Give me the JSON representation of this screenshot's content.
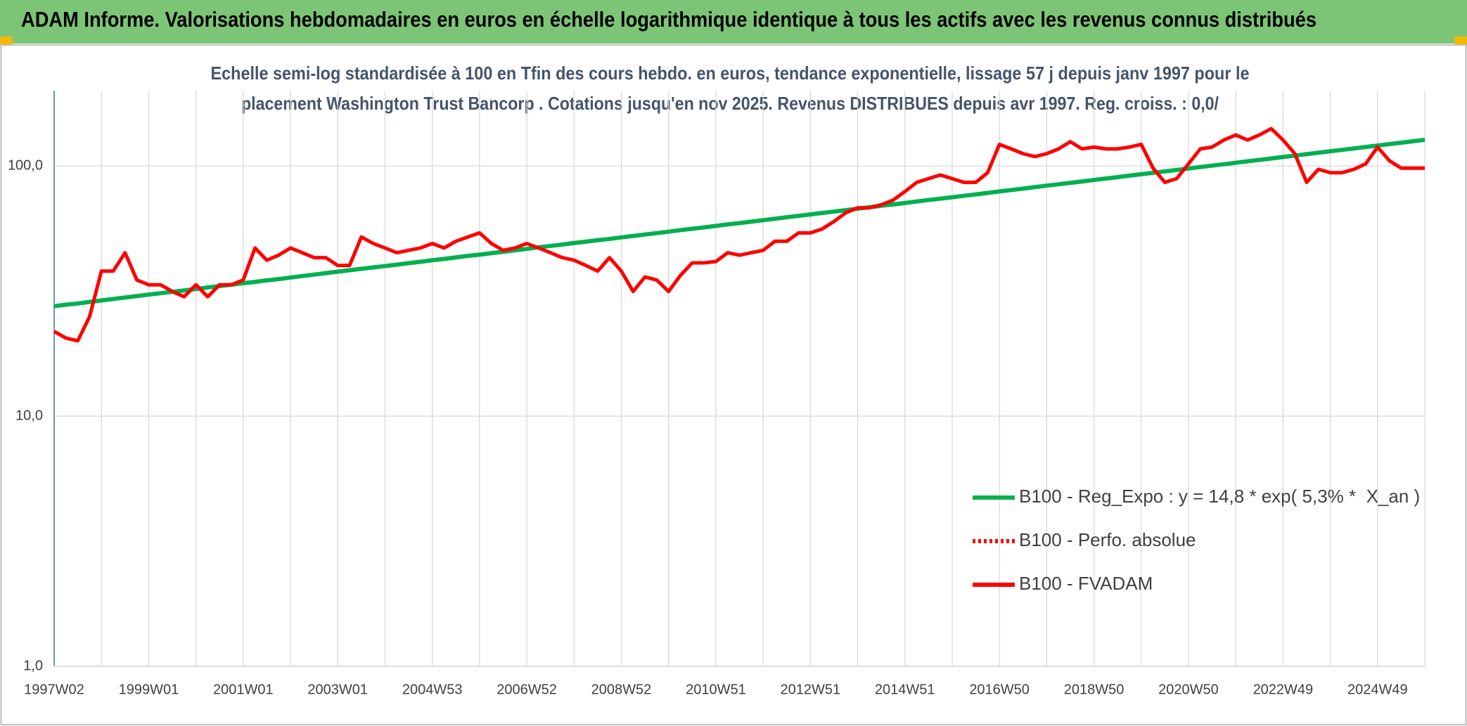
{
  "chart_data": {
    "type": "line",
    "title": "ADAM Informe. Valorisations hebdomadaires en euros en échelle logarithmique identique à tous les actifs avec les revenus connus distribués",
    "subtitle": [
      "Echelle semi-log standardisée à 100 en Tfin des cours hebdo. en euros, tendance exponentielle, lissage 57 j depuis janv 1997 pour le",
      "placement Washington Trust Bancorp . Cotations jusqu'en nov 2025. Revenus DISTRIBUES depuis avr 1997. Reg. croiss. : 0,0/"
    ],
    "log_scale": true,
    "grid": true,
    "legend": "lower right",
    "ylim": [
      1,
      200
    ],
    "yticks": [
      {
        "value": 1,
        "label": "1,0"
      },
      {
        "value": 10,
        "label": "10,0"
      },
      {
        "value": 100,
        "label": "100,0"
      }
    ],
    "categories": [
      "1997W02",
      null,
      null,
      null,
      null,
      null,
      null,
      null,
      "1999W01",
      null,
      null,
      null,
      null,
      null,
      null,
      null,
      "2001W01",
      null,
      null,
      null,
      null,
      null,
      null,
      null,
      "2003W01",
      null,
      null,
      null,
      null,
      null,
      null,
      null,
      "2004W53",
      null,
      null,
      null,
      null,
      null,
      null,
      null,
      "2006W52",
      null,
      null,
      null,
      null,
      null,
      null,
      null,
      "2008W52",
      null,
      null,
      null,
      null,
      null,
      null,
      null,
      "2010W51",
      null,
      null,
      null,
      null,
      null,
      null,
      null,
      "2012W51",
      null,
      null,
      null,
      null,
      null,
      null,
      null,
      "2014W51",
      null,
      null,
      null,
      null,
      null,
      null,
      null,
      "2016W50",
      null,
      null,
      null,
      null,
      null,
      null,
      null,
      "2018W50",
      null,
      null,
      null,
      null,
      null,
      null,
      null,
      "2020W50",
      null,
      null,
      null,
      null,
      null,
      null,
      null,
      "2022W49",
      null,
      null,
      null,
      null,
      null,
      null,
      null,
      "2024W49",
      null,
      null,
      null,
      null
    ],
    "series": [
      {
        "name": "B100 - Reg_Expo : y = 14,8 * exp( 5,3% *  X_an )",
        "color": "#00b050",
        "style": "solid",
        "values": [
          27.5,
          27.9,
          28.2,
          28.6,
          29.0,
          29.4,
          29.8,
          30.2,
          30.6,
          31.0,
          31.4,
          31.8,
          32.2,
          32.7,
          33.1,
          33.5,
          34.0,
          34.4,
          34.9,
          35.3,
          35.8,
          36.3,
          36.8,
          37.3,
          37.8,
          38.3,
          38.8,
          39.3,
          39.8,
          40.3,
          40.9,
          41.4,
          42.0,
          42.5,
          43.1,
          43.7,
          44.2,
          44.8,
          45.4,
          46.0,
          46.6,
          47.3,
          47.9,
          48.5,
          49.2,
          49.8,
          50.5,
          51.1,
          51.8,
          52.5,
          53.2,
          53.9,
          54.6,
          55.4,
          56.1,
          56.8,
          57.6,
          58.4,
          59.1,
          59.9,
          60.7,
          61.5,
          62.4,
          63.2,
          64.0,
          64.9,
          65.7,
          66.6,
          67.5,
          68.4,
          69.3,
          70.2,
          71.1,
          72.1,
          73.1,
          74.0,
          75.0,
          76.0,
          77.0,
          78.0,
          79.1,
          80.1,
          81.2,
          82.3,
          83.4,
          84.5,
          85.6,
          86.7,
          87.9,
          89.1,
          90.2,
          91.5,
          92.7,
          93.9,
          95.1,
          96.4,
          97.7,
          99.0,
          100.3,
          101.6,
          103.0,
          104.4,
          105.7,
          107.1,
          108.6,
          110.0,
          111.5,
          113.0,
          114.5,
          116.0,
          117.5,
          119.1,
          120.7,
          122.3,
          123.9,
          125.5,
          127.2
        ]
      },
      {
        "name": "B100 - Perfo. absolue",
        "color": "#ff0000",
        "style": "dotted",
        "values": [
          null,
          null,
          null,
          null,
          null,
          null,
          null,
          null,
          null,
          null,
          null,
          null,
          null,
          null,
          null,
          null,
          null,
          null,
          null,
          null,
          null,
          null,
          null,
          null,
          null,
          null,
          null,
          null,
          null,
          null,
          null,
          null,
          null,
          null,
          null,
          null,
          null,
          null,
          null,
          null,
          null,
          null,
          null,
          null,
          null,
          null,
          null,
          null,
          null,
          null,
          null,
          null,
          null,
          null,
          null,
          null,
          null,
          null,
          null,
          null,
          null,
          null,
          null,
          null,
          null,
          null,
          null,
          null,
          null,
          null,
          null,
          null,
          null,
          null,
          null,
          null,
          null,
          null,
          null,
          null,
          null,
          null,
          null,
          null,
          null,
          null,
          null,
          null,
          null,
          null,
          null,
          null,
          null,
          null,
          null,
          null,
          null,
          null,
          null,
          null,
          null,
          null,
          null,
          null,
          null,
          null,
          null,
          null,
          null,
          null,
          null,
          null,
          null,
          null,
          null,
          null,
          null
        ]
      },
      {
        "name": "B100 - FVADAM",
        "color": "#ff0000",
        "style": "solid",
        "values": [
          21.8,
          20.5,
          20,
          25,
          38,
          38,
          45,
          35,
          33.5,
          33.5,
          31.5,
          30,
          33.5,
          30,
          33.5,
          33.5,
          35,
          47,
          42,
          44,
          47,
          45,
          43,
          43,
          40,
          40,
          52,
          49,
          47,
          45,
          46,
          47,
          49,
          47,
          50,
          52,
          54,
          49,
          46,
          47,
          49,
          47,
          45,
          43,
          42,
          40,
          38,
          43,
          38,
          31.5,
          36,
          35,
          31.5,
          36.5,
          41,
          41,
          41.5,
          45,
          44,
          45,
          46,
          50,
          50,
          54,
          54,
          56,
          60,
          65,
          68,
          68,
          70,
          73,
          79,
          86,
          89,
          92,
          89,
          86,
          86,
          94,
          122,
          117,
          112,
          109,
          112,
          117,
          125,
          117,
          119,
          117,
          117,
          119,
          122,
          98,
          86,
          89,
          102,
          117,
          119,
          127,
          133,
          127,
          133,
          141,
          127,
          112,
          86,
          97,
          94,
          94,
          97,
          102,
          119,
          105,
          98,
          98,
          98
        ]
      }
    ]
  }
}
